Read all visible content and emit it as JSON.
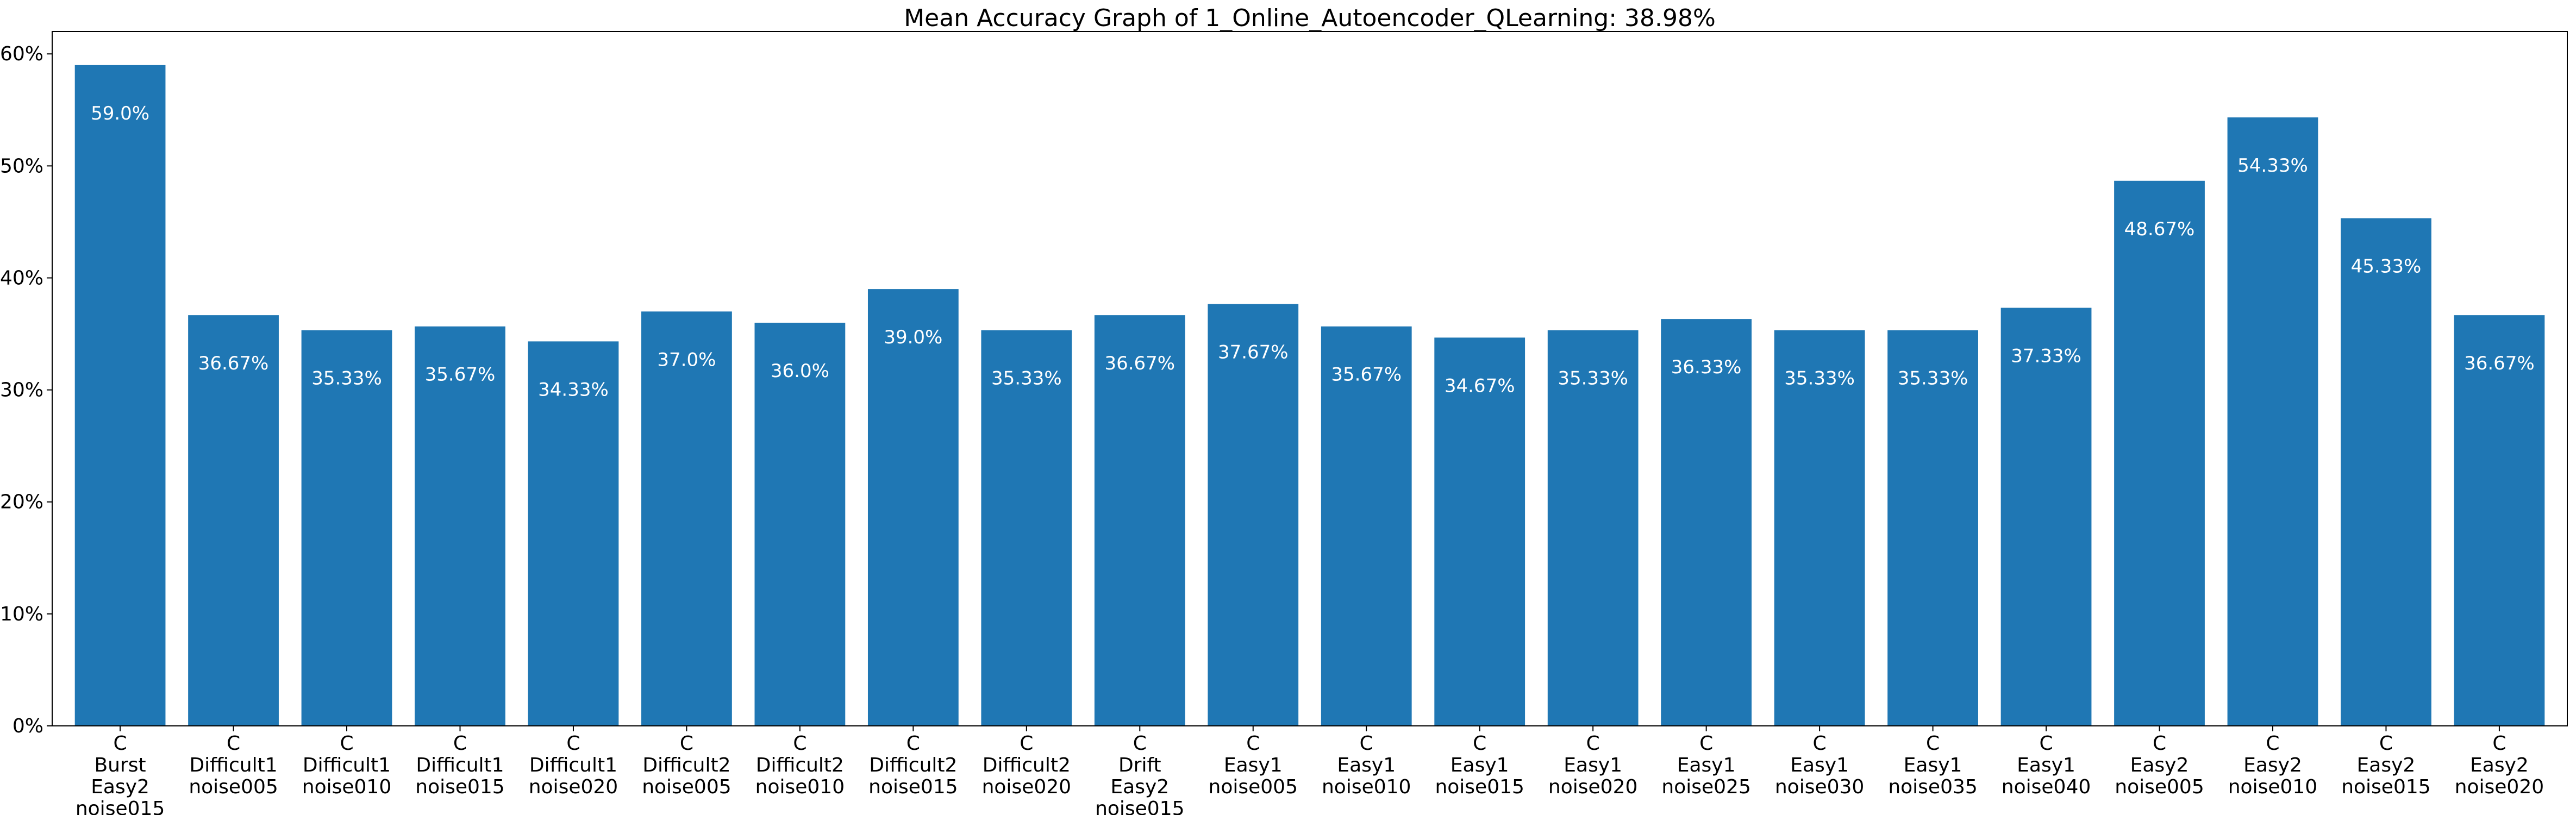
{
  "chart_data": {
    "type": "bar",
    "title": "Mean Accuracy Graph of 1_Online_Autoencoder_QLearning: 38.98%",
    "xlabel": "",
    "ylabel": "",
    "ylim": [
      0,
      62
    ],
    "yticks": [
      0,
      10,
      20,
      30,
      40,
      50,
      60
    ],
    "ytick_labels": [
      "0%",
      "10%",
      "20%",
      "30%",
      "40%",
      "50%",
      "60%"
    ],
    "grid": false,
    "bar_color": "#1f77b4",
    "label_color": "#ffffff",
    "categories": [
      [
        "C",
        "Burst",
        "Easy2",
        "noise015"
      ],
      [
        "C",
        "Difficult1",
        "noise005"
      ],
      [
        "C",
        "Difficult1",
        "noise010"
      ],
      [
        "C",
        "Difficult1",
        "noise015"
      ],
      [
        "C",
        "Difficult1",
        "noise020"
      ],
      [
        "C",
        "Difficult2",
        "noise005"
      ],
      [
        "C",
        "Difficult2",
        "noise010"
      ],
      [
        "C",
        "Difficult2",
        "noise015"
      ],
      [
        "C",
        "Difficult2",
        "noise020"
      ],
      [
        "C",
        "Drift",
        "Easy2",
        "noise015"
      ],
      [
        "C",
        "Easy1",
        "noise005"
      ],
      [
        "C",
        "Easy1",
        "noise010"
      ],
      [
        "C",
        "Easy1",
        "noise015"
      ],
      [
        "C",
        "Easy1",
        "noise020"
      ],
      [
        "C",
        "Easy1",
        "noise025"
      ],
      [
        "C",
        "Easy1",
        "noise030"
      ],
      [
        "C",
        "Easy1",
        "noise035"
      ],
      [
        "C",
        "Easy1",
        "noise040"
      ],
      [
        "C",
        "Easy2",
        "noise005"
      ],
      [
        "C",
        "Easy2",
        "noise010"
      ],
      [
        "C",
        "Easy2",
        "noise015"
      ],
      [
        "C",
        "Easy2",
        "noise020"
      ]
    ],
    "values": [
      59.0,
      36.67,
      35.33,
      35.67,
      34.33,
      37.0,
      36.0,
      39.0,
      35.33,
      36.67,
      37.67,
      35.67,
      34.67,
      35.33,
      36.33,
      35.33,
      35.33,
      37.33,
      48.67,
      54.33,
      45.33,
      36.67
    ],
    "value_labels": [
      "59.0%",
      "36.67%",
      "35.33%",
      "35.67%",
      "34.33%",
      "37.0%",
      "36.0%",
      "39.0%",
      "35.33%",
      "36.67%",
      "37.67%",
      "35.67%",
      "34.67%",
      "35.33%",
      "36.33%",
      "35.33%",
      "35.33%",
      "37.33%",
      "48.67%",
      "54.33%",
      "45.33%",
      "36.67%"
    ]
  }
}
